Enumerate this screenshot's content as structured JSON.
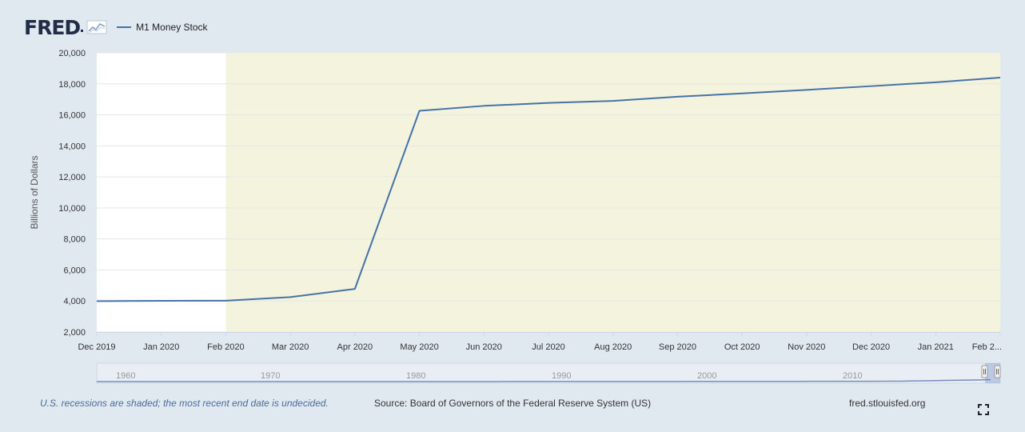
{
  "header": {
    "logo_text": "FRED",
    "legend_label": "M1 Money Stock"
  },
  "colors": {
    "series": "#4572a7",
    "recession_shade": "#f4f4de",
    "plot_background": "#ffffff",
    "page_background": "#e1e9f0"
  },
  "chart_data": {
    "type": "line",
    "ylabel": "Billions of Dollars",
    "ylim": [
      2000,
      20000
    ],
    "yticks": [
      "2,000",
      "4,000",
      "6,000",
      "8,000",
      "10,000",
      "12,000",
      "14,000",
      "16,000",
      "18,000",
      "20,000"
    ],
    "ytick_values": [
      2000,
      4000,
      6000,
      8000,
      10000,
      12000,
      14000,
      16000,
      18000,
      20000
    ],
    "x": [
      "Dec 2019",
      "Jan 2020",
      "Feb 2020",
      "Mar 2020",
      "Apr 2020",
      "May 2020",
      "Jun 2020",
      "Jul 2020",
      "Aug 2020",
      "Sep 2020",
      "Oct 2020",
      "Nov 2020",
      "Dec 2020",
      "Jan 2021",
      "Feb 2021"
    ],
    "xtick_labels": [
      "Dec 2019",
      "Jan 2020",
      "Feb 2020",
      "Mar 2020",
      "Apr 2020",
      "May 2020",
      "Jun 2020",
      "Jul 2020",
      "Aug 2020",
      "Sep 2020",
      "Oct 2020",
      "Nov 2020",
      "Dec 2020",
      "Jan 2021",
      "Feb 2..."
    ],
    "series": [
      {
        "name": "M1 Money Stock",
        "values": [
          3990,
          4010,
          4020,
          4250,
          4780,
          16260,
          16580,
          16770,
          16900,
          17170,
          17380,
          17610,
          17850,
          18100,
          18400
        ]
      }
    ],
    "recession": {
      "start": "Feb 2020",
      "end": "Feb 2021"
    },
    "grid": true,
    "legend": "top-left"
  },
  "navigator": {
    "years": [
      "1960",
      "1970",
      "1980",
      "1990",
      "2000",
      "2010"
    ]
  },
  "footer": {
    "recession_note": "U.S. recessions are shaded; the most recent end date is undecided.",
    "source": "Source: Board of Governors of the Federal Reserve System (US)",
    "site": "fred.stlouisfed.org"
  },
  "icons": {
    "fullscreen": "fullscreen-icon",
    "logo_chart": "fred-chart-icon"
  }
}
